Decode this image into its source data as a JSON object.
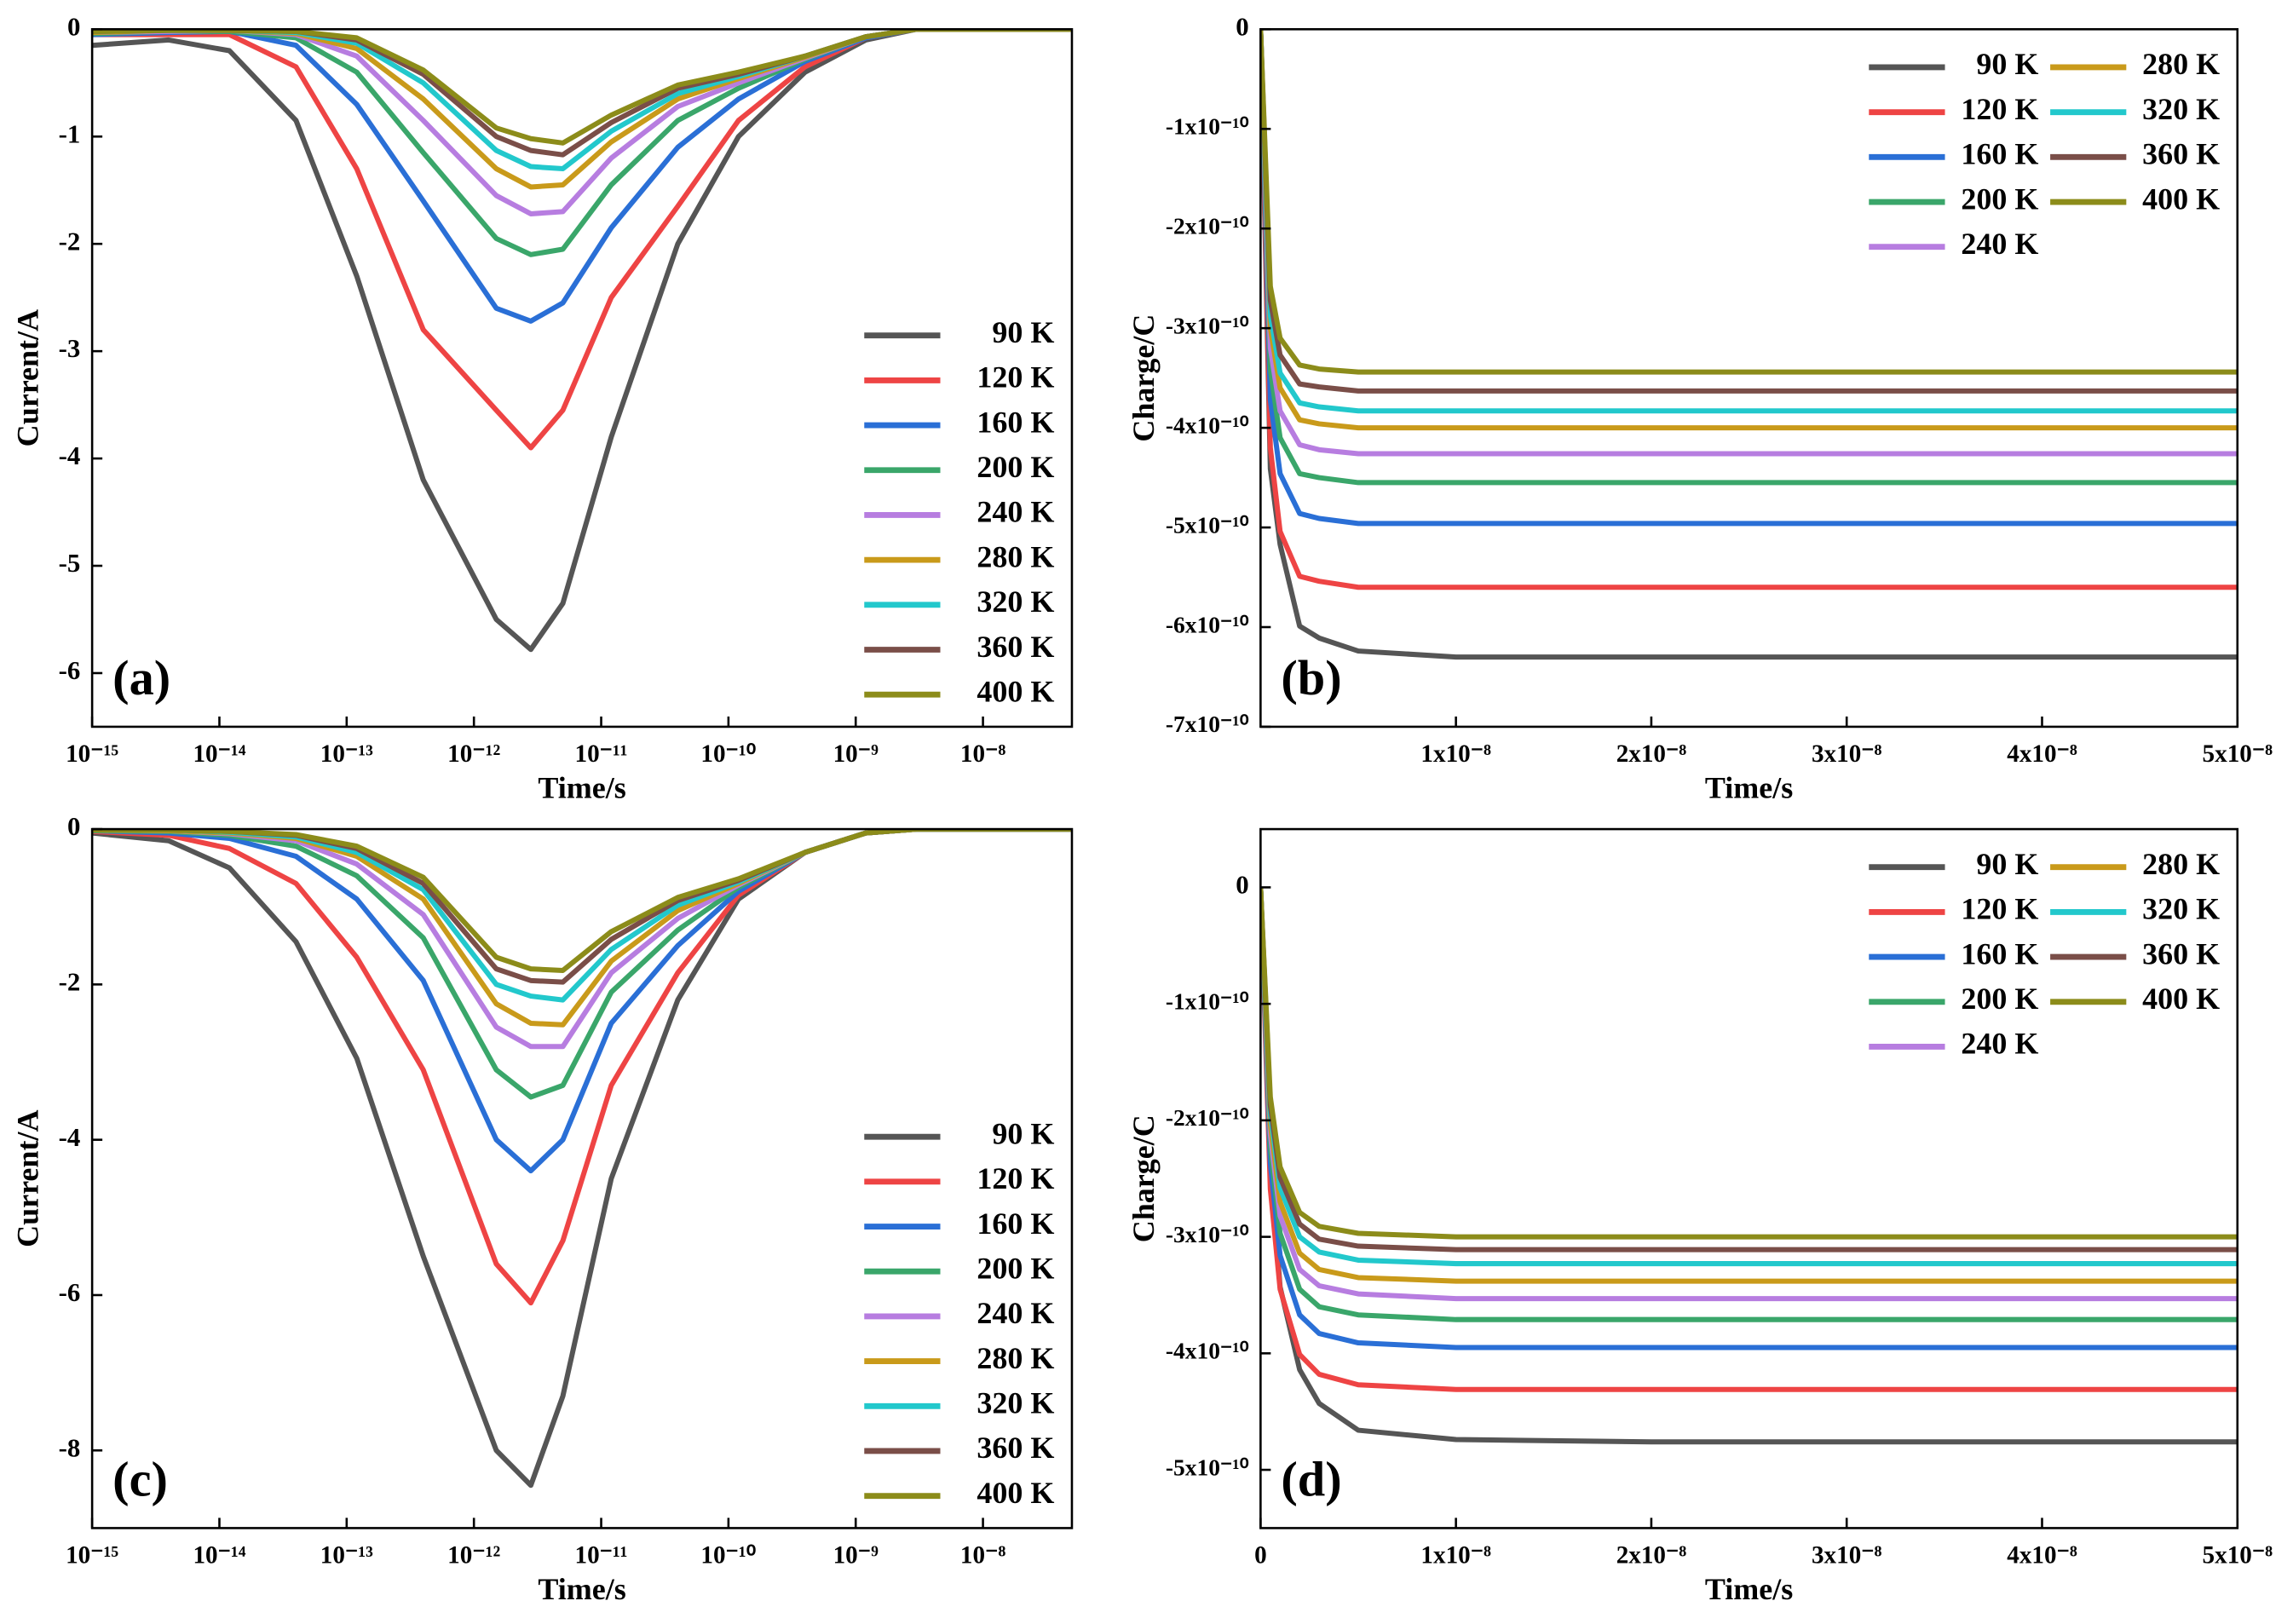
{
  "chart_data": [
    {
      "type": "line",
      "annotation": "(a)",
      "xlabel": "Time/s",
      "ylabel": "Current/A",
      "xscale": "log",
      "xlim": [
        1e-15,
        5e-08
      ],
      "xticks": [
        {
          "value": 1e-15,
          "label": "10⁻¹⁵"
        },
        {
          "value": 1e-14,
          "label": "10⁻¹⁴"
        },
        {
          "value": 1e-13,
          "label": "10⁻¹³"
        },
        {
          "value": 1e-12,
          "label": "10⁻¹²"
        },
        {
          "value": 1e-11,
          "label": "10⁻¹¹"
        },
        {
          "value": 1e-10,
          "label": "10⁻¹⁰"
        },
        {
          "value": 1e-09,
          "label": "10⁻⁹"
        },
        {
          "value": 1e-08,
          "label": "10⁻⁸"
        }
      ],
      "ylim": [
        -6.5,
        0
      ],
      "yticks": [
        0,
        -1,
        -2,
        -3,
        -4,
        -5,
        -6
      ],
      "legend": "lower right",
      "legend_columns": 1,
      "x": [
        1e-15,
        4e-15,
        1.2e-14,
        4e-14,
        1.2e-13,
        4e-13,
        1.5e-12,
        2.8e-12,
        5e-12,
        1.2e-11,
        4e-11,
        1.2e-10,
        4e-10,
        1.2e-09,
        3e-09,
        5e-08
      ],
      "series": [
        {
          "name": "90 K",
          "color": "#555555",
          "values": [
            -0.15,
            -0.1,
            -0.2,
            -0.85,
            -2.3,
            -4.2,
            -5.5,
            -5.78,
            -5.35,
            -3.8,
            -2.0,
            -1.0,
            -0.4,
            -0.1,
            0,
            0
          ]
        },
        {
          "name": "120 K",
          "color": "#ee4444",
          "values": [
            -0.05,
            -0.05,
            -0.05,
            -0.35,
            -1.3,
            -2.8,
            -3.55,
            -3.9,
            -3.55,
            -2.5,
            -1.65,
            -0.85,
            -0.35,
            -0.08,
            0,
            0
          ]
        },
        {
          "name": "160 K",
          "color": "#2a6fd6",
          "values": [
            -0.05,
            -0.03,
            -0.02,
            -0.15,
            -0.7,
            -1.6,
            -2.6,
            -2.72,
            -2.55,
            -1.85,
            -1.1,
            -0.65,
            -0.3,
            -0.08,
            0,
            0
          ]
        },
        {
          "name": "200 K",
          "color": "#3aa66a",
          "values": [
            -0.04,
            -0.02,
            -0.02,
            -0.08,
            -0.4,
            -1.15,
            -1.95,
            -2.1,
            -2.05,
            -1.45,
            -0.85,
            -0.55,
            -0.28,
            -0.07,
            0,
            0
          ]
        },
        {
          "name": "240 K",
          "color": "#b77de0",
          "values": [
            -0.03,
            -0.02,
            -0.01,
            -0.05,
            -0.25,
            -0.85,
            -1.55,
            -1.72,
            -1.7,
            -1.2,
            -0.72,
            -0.5,
            -0.27,
            -0.07,
            0,
            0
          ]
        },
        {
          "name": "280 K",
          "color": "#c99a1a",
          "values": [
            -0.03,
            -0.01,
            -0.01,
            -0.04,
            -0.18,
            -0.65,
            -1.3,
            -1.47,
            -1.45,
            -1.05,
            -0.65,
            -0.46,
            -0.26,
            -0.07,
            0,
            0
          ]
        },
        {
          "name": "320 K",
          "color": "#22c8cc",
          "values": [
            -0.02,
            -0.01,
            -0.01,
            -0.03,
            -0.13,
            -0.5,
            -1.13,
            -1.28,
            -1.3,
            -0.95,
            -0.6,
            -0.44,
            -0.25,
            -0.07,
            0,
            0
          ]
        },
        {
          "name": "360 K",
          "color": "#7a4e48",
          "values": [
            -0.02,
            -0.01,
            -0.01,
            -0.02,
            -0.1,
            -0.42,
            -1.0,
            -1.13,
            -1.17,
            -0.87,
            -0.55,
            -0.42,
            -0.25,
            -0.07,
            0,
            0
          ]
        },
        {
          "name": "400 K",
          "color": "#8c8c1a",
          "values": [
            -0.02,
            -0.01,
            -0.01,
            -0.02,
            -0.08,
            -0.38,
            -0.92,
            -1.02,
            -1.06,
            -0.8,
            -0.52,
            -0.4,
            -0.25,
            -0.07,
            0,
            0
          ]
        }
      ]
    },
    {
      "type": "line",
      "annotation": "(b)",
      "xlabel": "Time/s",
      "ylabel": "Charge/C",
      "xscale": "linear",
      "xlim": [
        0,
        5e-08
      ],
      "xticks": [
        {
          "value": 1e-08,
          "label": "1x10⁻⁸"
        },
        {
          "value": 2e-08,
          "label": "2x10⁻⁸"
        },
        {
          "value": 3e-08,
          "label": "3x10⁻⁸"
        },
        {
          "value": 4e-08,
          "label": "4x10⁻⁸"
        },
        {
          "value": 5e-08,
          "label": "5x10⁻⁸"
        }
      ],
      "ylim": [
        -7e-10,
        0
      ],
      "yticks": [
        0,
        {
          "value": -1e-10,
          "label": "-1x10⁻¹⁰"
        },
        {
          "value": -2e-10,
          "label": "-2x10⁻¹⁰"
        },
        {
          "value": -3e-10,
          "label": "-3x10⁻¹⁰"
        },
        {
          "value": -4e-10,
          "label": "-4x10⁻¹⁰"
        },
        {
          "value": -5e-10,
          "label": "-5x10⁻¹⁰"
        },
        {
          "value": -6e-10,
          "label": "-6x10⁻¹⁰"
        },
        {
          "value": -7e-10,
          "label": "-7x10⁻¹⁰"
        }
      ],
      "legend": "upper right",
      "legend_columns": 2,
      "x": [
        0,
        5e-10,
        1e-09,
        2e-09,
        3e-09,
        5e-09,
        1e-08,
        2e-08,
        5e-08
      ],
      "series": [
        {
          "name": "90 K",
          "color": "#555555",
          "values": [
            0,
            -4.41e-10,
            -5.17e-10,
            -5.99e-10,
            -6.11e-10,
            -6.24e-10,
            -6.3e-10,
            -6.3e-10,
            -6.3e-10
          ]
        },
        {
          "name": "120 K",
          "color": "#ee4444",
          "values": [
            0,
            -4.2e-10,
            -5.04e-10,
            -5.49e-10,
            -5.54e-10,
            -5.6e-10,
            -5.6e-10,
            -5.6e-10,
            -5.6e-10
          ]
        },
        {
          "name": "160 K",
          "color": "#2a6fd6",
          "values": [
            0,
            -3.72e-10,
            -4.46e-10,
            -4.86e-10,
            -4.91e-10,
            -4.96e-10,
            -4.96e-10,
            -4.96e-10,
            -4.96e-10
          ]
        },
        {
          "name": "200 K",
          "color": "#3aa66a",
          "values": [
            0,
            -3.41e-10,
            -4.1e-10,
            -4.46e-10,
            -4.5e-10,
            -4.55e-10,
            -4.55e-10,
            -4.55e-10,
            -4.55e-10
          ]
        },
        {
          "name": "240 K",
          "color": "#b77de0",
          "values": [
            0,
            -3.2e-10,
            -3.83e-10,
            -4.17e-10,
            -4.22e-10,
            -4.26e-10,
            -4.26e-10,
            -4.26e-10,
            -4.26e-10
          ]
        },
        {
          "name": "280 K",
          "color": "#c99a1a",
          "values": [
            0,
            -3e-10,
            -3.6e-10,
            -3.92e-10,
            -3.96e-10,
            -4e-10,
            -4e-10,
            -4e-10,
            -4e-10
          ]
        },
        {
          "name": "320 K",
          "color": "#22c8cc",
          "values": [
            0,
            -2.87e-10,
            -3.45e-10,
            -3.75e-10,
            -3.79e-10,
            -3.83e-10,
            -3.83e-10,
            -3.83e-10,
            -3.83e-10
          ]
        },
        {
          "name": "360 K",
          "color": "#7a4e48",
          "values": [
            0,
            -2.72e-10,
            -3.27e-10,
            -3.56e-10,
            -3.59e-10,
            -3.63e-10,
            -3.63e-10,
            -3.63e-10,
            -3.63e-10
          ]
        },
        {
          "name": "400 K",
          "color": "#8c8c1a",
          "values": [
            0,
            -2.58e-10,
            -3.1e-10,
            -3.37e-10,
            -3.41e-10,
            -3.44e-10,
            -3.44e-10,
            -3.44e-10,
            -3.44e-10
          ]
        }
      ]
    },
    {
      "type": "line",
      "annotation": "(c)",
      "xlabel": "Time/s",
      "ylabel": "Current/A",
      "xscale": "log",
      "xlim": [
        1e-15,
        5e-08
      ],
      "xticks": [
        {
          "value": 1e-15,
          "label": "10⁻¹⁵"
        },
        {
          "value": 1e-14,
          "label": "10⁻¹⁴"
        },
        {
          "value": 1e-13,
          "label": "10⁻¹³"
        },
        {
          "value": 1e-12,
          "label": "10⁻¹²"
        },
        {
          "value": 1e-11,
          "label": "10⁻¹¹"
        },
        {
          "value": 1e-10,
          "label": "10⁻¹⁰"
        },
        {
          "value": 1e-09,
          "label": "10⁻⁹"
        },
        {
          "value": 1e-08,
          "label": "10⁻⁸"
        }
      ],
      "ylim": [
        -9,
        0
      ],
      "yticks": [
        0,
        -2,
        -4,
        -6,
        -8
      ],
      "legend": "lower right",
      "legend_columns": 1,
      "x": [
        1e-15,
        4e-15,
        1.2e-14,
        4e-14,
        1.2e-13,
        4e-13,
        1.5e-12,
        2.8e-12,
        5e-12,
        1.2e-11,
        4e-11,
        1.2e-10,
        4e-10,
        1.2e-09,
        3e-09,
        5e-08
      ],
      "series": [
        {
          "name": "90 K",
          "color": "#555555",
          "values": [
            -0.05,
            -0.15,
            -0.5,
            -1.45,
            -2.95,
            -5.5,
            -8.0,
            -8.45,
            -7.3,
            -4.5,
            -2.2,
            -0.9,
            -0.3,
            -0.05,
            0,
            0
          ]
        },
        {
          "name": "120 K",
          "color": "#ee4444",
          "values": [
            -0.03,
            -0.08,
            -0.25,
            -0.7,
            -1.65,
            -3.1,
            -5.6,
            -6.1,
            -5.3,
            -3.3,
            -1.85,
            -0.85,
            -0.3,
            -0.05,
            0,
            0
          ]
        },
        {
          "name": "160 K",
          "color": "#2a6fd6",
          "values": [
            -0.02,
            -0.05,
            -0.12,
            -0.35,
            -0.9,
            -1.95,
            -4.0,
            -4.4,
            -4.0,
            -2.5,
            -1.5,
            -0.8,
            -0.3,
            -0.05,
            0,
            0
          ]
        },
        {
          "name": "200 K",
          "color": "#3aa66a",
          "values": [
            -0.02,
            -0.03,
            -0.08,
            -0.22,
            -0.6,
            -1.4,
            -3.1,
            -3.45,
            -3.3,
            -2.1,
            -1.3,
            -0.75,
            -0.3,
            -0.05,
            0,
            0
          ]
        },
        {
          "name": "240 K",
          "color": "#b77de0",
          "values": [
            -0.01,
            -0.02,
            -0.06,
            -0.15,
            -0.45,
            -1.1,
            -2.55,
            -2.8,
            -2.8,
            -1.85,
            -1.15,
            -0.72,
            -0.3,
            -0.05,
            0,
            0
          ]
        },
        {
          "name": "280 K",
          "color": "#c99a1a",
          "values": [
            -0.01,
            -0.02,
            -0.05,
            -0.12,
            -0.35,
            -0.9,
            -2.25,
            -2.5,
            -2.52,
            -1.7,
            -1.05,
            -0.7,
            -0.3,
            -0.05,
            0,
            0
          ]
        },
        {
          "name": "320 K",
          "color": "#22c8cc",
          "values": [
            -0.01,
            -0.01,
            -0.04,
            -0.1,
            -0.3,
            -0.78,
            -2.0,
            -2.15,
            -2.2,
            -1.55,
            -0.98,
            -0.68,
            -0.3,
            -0.05,
            0,
            0
          ]
        },
        {
          "name": "360 K",
          "color": "#7a4e48",
          "values": [
            -0.01,
            -0.01,
            -0.03,
            -0.08,
            -0.25,
            -0.7,
            -1.8,
            -1.95,
            -1.97,
            -1.42,
            -0.92,
            -0.66,
            -0.3,
            -0.05,
            0,
            0
          ]
        },
        {
          "name": "400 K",
          "color": "#8c8c1a",
          "values": [
            -0.01,
            -0.01,
            -0.03,
            -0.07,
            -0.22,
            -0.62,
            -1.65,
            -1.8,
            -1.82,
            -1.32,
            -0.88,
            -0.64,
            -0.3,
            -0.05,
            0,
            0
          ]
        }
      ]
    },
    {
      "type": "line",
      "annotation": "(d)",
      "xlabel": "Time/s",
      "ylabel": "Charge/C",
      "xscale": "linear",
      "xlim": [
        0,
        5e-08
      ],
      "xticks": [
        0,
        {
          "value": 1e-08,
          "label": "1x10⁻⁸"
        },
        {
          "value": 2e-08,
          "label": "2x10⁻⁸"
        },
        {
          "value": 3e-08,
          "label": "3x10⁻⁸"
        },
        {
          "value": 4e-08,
          "label": "4x10⁻⁸"
        },
        {
          "value": 5e-08,
          "label": "5x10⁻⁸"
        }
      ],
      "ylim": [
        -5.5e-10,
        5e-11
      ],
      "yticks": [
        0,
        {
          "value": -1e-10,
          "label": "-1x10⁻¹⁰"
        },
        {
          "value": -2e-10,
          "label": "-2x10⁻¹⁰"
        },
        {
          "value": -3e-10,
          "label": "-3x10⁻¹⁰"
        },
        {
          "value": -4e-10,
          "label": "-4x10⁻¹⁰"
        },
        {
          "value": -5e-10,
          "label": "-5x10⁻¹⁰"
        }
      ],
      "legend": "upper right",
      "legend_columns": 2,
      "x": [
        0,
        5e-10,
        1e-09,
        2e-09,
        3e-09,
        5e-09,
        1e-08,
        2e-08,
        5e-08
      ],
      "series": [
        {
          "name": "90 K",
          "color": "#555555",
          "values": [
            0,
            -2.38e-10,
            -3.43e-10,
            -4.14e-10,
            -4.43e-10,
            -4.66e-10,
            -4.74e-10,
            -4.76e-10,
            -4.76e-10
          ]
        },
        {
          "name": "120 K",
          "color": "#ee4444",
          "values": [
            0,
            -2.59e-10,
            -3.45e-10,
            -4.01e-10,
            -4.18e-10,
            -4.27e-10,
            -4.31e-10,
            -4.31e-10,
            -4.31e-10
          ]
        },
        {
          "name": "160 K",
          "color": "#2a6fd6",
          "values": [
            0,
            -2.37e-10,
            -3.16e-10,
            -3.67e-10,
            -3.83e-10,
            -3.91e-10,
            -3.95e-10,
            -3.95e-10,
            -3.95e-10
          ]
        },
        {
          "name": "200 K",
          "color": "#3aa66a",
          "values": [
            0,
            -2.23e-10,
            -2.97e-10,
            -3.45e-10,
            -3.6e-10,
            -3.67e-10,
            -3.71e-10,
            -3.71e-10,
            -3.71e-10
          ]
        },
        {
          "name": "240 K",
          "color": "#b77de0",
          "values": [
            0,
            -2.12e-10,
            -2.82e-10,
            -3.28e-10,
            -3.42e-10,
            -3.49e-10,
            -3.53e-10,
            -3.53e-10,
            -3.53e-10
          ]
        },
        {
          "name": "280 K",
          "color": "#c99a1a",
          "values": [
            0,
            -2.03e-10,
            -2.7e-10,
            -3.14e-10,
            -3.28e-10,
            -3.35e-10,
            -3.38e-10,
            -3.38e-10,
            -3.38e-10
          ]
        },
        {
          "name": "320 K",
          "color": "#22c8cc",
          "values": [
            0,
            -1.94e-10,
            -2.58e-10,
            -3e-10,
            -3.13e-10,
            -3.2e-10,
            -3.23e-10,
            -3.23e-10,
            -3.23e-10
          ]
        },
        {
          "name": "360 K",
          "color": "#7a4e48",
          "values": [
            0,
            -1.87e-10,
            -2.49e-10,
            -2.89e-10,
            -3.02e-10,
            -3.08e-10,
            -3.11e-10,
            -3.11e-10,
            -3.11e-10
          ]
        },
        {
          "name": "400 K",
          "color": "#8c8c1a",
          "values": [
            0,
            -1.8e-10,
            -2.4e-10,
            -2.79e-10,
            -2.91e-10,
            -2.97e-10,
            -3e-10,
            -3e-10,
            -3e-10
          ]
        }
      ]
    }
  ]
}
